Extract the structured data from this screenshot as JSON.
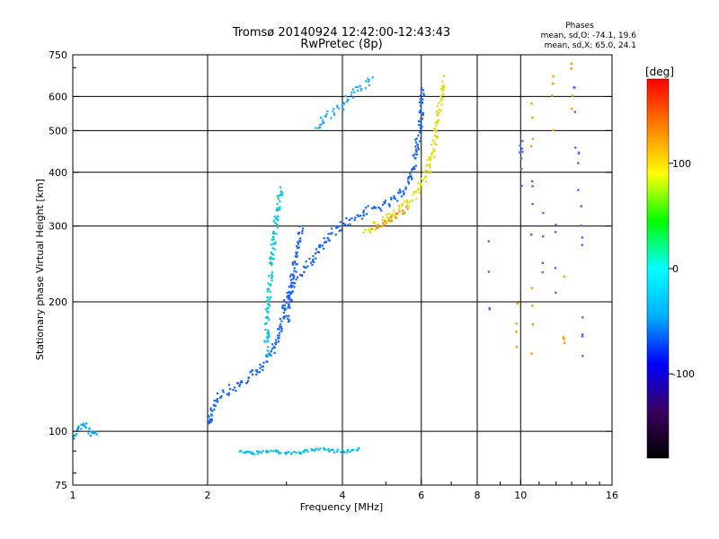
{
  "chart_data": {
    "type": "scatter",
    "title": "Tromsø 20140924 12:42:00-12:43:43",
    "subtitle": "RwPretec (8p)",
    "xlabel": "Frequency [MHz]",
    "ylabel": "Stationary phase Virtual Height [km]",
    "x_scale": "log",
    "y_scale": "log",
    "xlim": [
      1,
      16
    ],
    "ylim": [
      75,
      750
    ],
    "x_ticks": [
      1,
      2,
      4,
      6,
      8,
      10,
      16
    ],
    "x_tick_labels": [
      "1",
      "2",
      "4",
      "6",
      "8",
      "10",
      "16"
    ],
    "y_ticks": [
      75,
      100,
      200,
      300,
      400,
      500,
      600,
      750
    ],
    "y_tick_labels": [
      "75",
      "100",
      "200",
      "300",
      "400",
      "500",
      "600",
      "750"
    ],
    "grid": true,
    "stats": {
      "heading": "Phases",
      "line_o": "mean, sd,O: -74.1, 19.6",
      "line_x": "mean, sd,X: 65.0, 24.1"
    },
    "colorbar": {
      "label": "[deg]",
      "range": [
        -180,
        180
      ],
      "ticks": [
        100,
        0,
        -100
      ],
      "tick_labels": [
        "100",
        "0",
        "-100"
      ],
      "stops": [
        "#000000",
        "#3a0060",
        "#0000ff",
        "#00b0ff",
        "#00ffff",
        "#00ff00",
        "#ffff00",
        "#ff8000",
        "#ff0000"
      ]
    },
    "traces": [
      {
        "name": "",
        "color": "#00a8ff",
        "spread_y": 6,
        "points": [
          [
            1.0,
            97
          ],
          [
            1.03,
            102
          ],
          [
            1.06,
            104
          ],
          [
            1.1,
            98
          ],
          [
            1.14,
            100
          ]
        ]
      },
      {
        "name": "",
        "color": "#1565ff",
        "spread_y": 10,
        "points": [
          [
            2.02,
            102
          ],
          [
            2.05,
            113
          ],
          [
            2.1,
            120
          ],
          [
            2.2,
            124
          ],
          [
            2.35,
            128
          ],
          [
            2.5,
            134
          ],
          [
            2.65,
            142
          ],
          [
            2.75,
            150
          ],
          [
            2.85,
            162
          ],
          [
            2.92,
            178
          ],
          [
            2.98,
            196
          ],
          [
            3.05,
            212
          ],
          [
            3.15,
            228
          ],
          [
            3.3,
            240
          ],
          [
            3.45,
            252
          ],
          [
            3.6,
            268
          ],
          [
            3.8,
            288
          ],
          [
            4.0,
            302
          ],
          [
            4.3,
            316
          ],
          [
            4.6,
            326
          ],
          [
            5.0,
            336
          ],
          [
            5.3,
            348
          ],
          [
            5.55,
            368
          ],
          [
            5.72,
            400
          ],
          [
            5.85,
            450
          ],
          [
            5.95,
            510
          ],
          [
            6.0,
            560
          ],
          [
            6.03,
            630
          ]
        ]
      },
      {
        "name": "",
        "color": "#00c8e0",
        "spread_y": 14,
        "points": [
          [
            2.7,
            150
          ],
          [
            2.72,
            180
          ],
          [
            2.75,
            210
          ],
          [
            2.78,
            240
          ],
          [
            2.8,
            265
          ],
          [
            2.82,
            290
          ],
          [
            2.86,
            320
          ],
          [
            2.9,
            345
          ],
          [
            2.95,
            370
          ]
        ]
      },
      {
        "name": "",
        "color": "#2060ff",
        "spread_y": 12,
        "points": [
          [
            3.0,
            180
          ],
          [
            3.05,
            205
          ],
          [
            3.1,
            230
          ],
          [
            3.15,
            255
          ],
          [
            3.2,
            280
          ],
          [
            3.25,
            300
          ]
        ]
      },
      {
        "name": "",
        "color": "#20b0ff",
        "spread_y": 10,
        "points": [
          [
            3.5,
            505
          ],
          [
            3.7,
            540
          ],
          [
            3.9,
            560
          ],
          [
            4.1,
            590
          ],
          [
            4.3,
            625
          ],
          [
            4.5,
            640
          ],
          [
            4.65,
            660
          ]
        ]
      },
      {
        "name": "",
        "color": "#e0e000",
        "spread_y": 10,
        "points": [
          [
            4.5,
            290
          ],
          [
            4.8,
            302
          ],
          [
            5.1,
            315
          ],
          [
            5.4,
            330
          ],
          [
            5.75,
            350
          ],
          [
            6.0,
            372
          ],
          [
            6.2,
            400
          ],
          [
            6.35,
            440
          ],
          [
            6.45,
            490
          ],
          [
            6.55,
            545
          ],
          [
            6.65,
            600
          ],
          [
            6.72,
            660
          ]
        ]
      },
      {
        "name": "",
        "color": "#ff9000",
        "spread_y": 6,
        "points": [
          [
            4.7,
            297
          ],
          [
            5.0,
            306
          ],
          [
            5.3,
            318
          ],
          [
            5.6,
            330
          ]
        ]
      },
      {
        "name": "",
        "color": "#00c0e8",
        "spread_y": 3,
        "points": [
          [
            2.35,
            90
          ],
          [
            2.55,
            89
          ],
          [
            2.75,
            90
          ],
          [
            2.95,
            89
          ],
          [
            3.15,
            89
          ],
          [
            3.35,
            90
          ],
          [
            3.55,
            91
          ],
          [
            3.8,
            90
          ],
          [
            4.1,
            90
          ],
          [
            4.4,
            91
          ]
        ]
      },
      {
        "name": "",
        "color": "#4a6cff",
        "spread_y": 40,
        "points": [
          [
            8.5,
            230
          ],
          [
            10.0,
            480
          ],
          [
            10.1,
            410
          ],
          [
            10.6,
            320
          ],
          [
            11.2,
            280
          ],
          [
            12.0,
            250
          ],
          [
            13.2,
            520
          ],
          [
            13.5,
            420
          ],
          [
            13.7,
            320
          ],
          [
            13.7,
            170
          ]
        ]
      },
      {
        "name": "",
        "color": "#ff9a00",
        "spread_y": 40,
        "points": [
          [
            9.8,
            170
          ],
          [
            10.6,
            500
          ],
          [
            10.6,
            180
          ],
          [
            11.8,
            560
          ],
          [
            12.5,
            190
          ],
          [
            13.0,
            600
          ]
        ]
      }
    ]
  }
}
